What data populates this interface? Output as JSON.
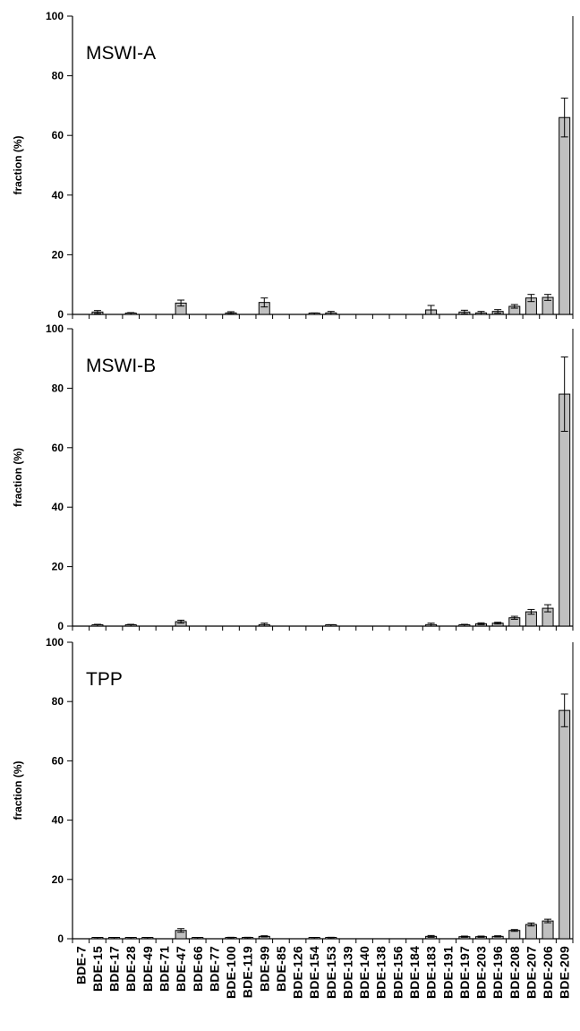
{
  "chart_data": {
    "type": "bar",
    "bar_color": "#c0c0c0",
    "categories": [
      "BDE-7",
      "BDE-15",
      "BDE-17",
      "BDE-28",
      "BDE-49",
      "BDE-71",
      "BDE-47",
      "BDE-66",
      "BDE-77",
      "BDE-100",
      "BDE-119",
      "BDE-99",
      "BDE-85",
      "BDE-126",
      "BDE-154",
      "BDE-153",
      "BDE-139",
      "BDE-140",
      "BDE-138",
      "BDE-156",
      "BDE-184",
      "BDE-183",
      "BDE-191",
      "BDE-197",
      "BDE-203",
      "BDE-196",
      "BDE-208",
      "BDE-207",
      "BDE-206",
      "BDE-209"
    ],
    "panels": [
      {
        "title": "MSWI-A",
        "ylabel": "fraction (%)",
        "ylim": [
          0,
          100
        ],
        "yticks": [
          "0",
          "20",
          "40",
          "60",
          "80",
          "100"
        ],
        "values": [
          0,
          0.8,
          0,
          0.3,
          0,
          0,
          3.8,
          0,
          0,
          0.5,
          0,
          4.0,
          0,
          0,
          0.2,
          0.5,
          0,
          0,
          0,
          0,
          0,
          1.5,
          0,
          0.8,
          0.5,
          1.0,
          2.7,
          5.5,
          5.7,
          66
        ],
        "errors": [
          0,
          0.5,
          0,
          0.3,
          0,
          0,
          1.0,
          0,
          0,
          0.4,
          0,
          1.5,
          0,
          0,
          0.3,
          0.5,
          0,
          0,
          0,
          0,
          0,
          1.5,
          0,
          0.6,
          0.5,
          0.6,
          0.6,
          1.2,
          1.0,
          6.5
        ]
      },
      {
        "title": "MSWI-B",
        "ylabel": "fraction (%)",
        "ylim": [
          0,
          100
        ],
        "yticks": [
          "0",
          "20",
          "40",
          "60",
          "80",
          "100"
        ],
        "values": [
          0,
          0.3,
          0,
          0.3,
          0,
          0,
          1.5,
          0,
          0,
          0,
          0,
          0.5,
          0,
          0,
          0,
          0.2,
          0,
          0,
          0,
          0,
          0,
          0.5,
          0,
          0.3,
          0.8,
          1.0,
          2.8,
          4.8,
          6.0,
          78
        ],
        "errors": [
          0,
          0.3,
          0,
          0.3,
          0,
          0,
          0.5,
          0,
          0,
          0,
          0,
          0.5,
          0,
          0,
          0,
          0.3,
          0,
          0,
          0,
          0,
          0,
          0.5,
          0,
          0.3,
          0.3,
          0.3,
          0.5,
          0.8,
          1.2,
          12.5
        ]
      },
      {
        "title": "TPP",
        "ylabel": "fraction (%)",
        "ylim": [
          0,
          100
        ],
        "yticks": [
          "0",
          "20",
          "40",
          "60",
          "80",
          "100"
        ],
        "values": [
          0,
          0.2,
          0.2,
          0.2,
          0.2,
          0,
          2.8,
          0.2,
          0,
          0.3,
          0.3,
          0.8,
          0,
          0,
          0.2,
          0.3,
          0,
          0,
          0,
          0,
          0,
          0.8,
          0,
          0.7,
          0.7,
          0.8,
          2.8,
          4.8,
          6.0,
          77
        ],
        "errors": [
          0,
          0.2,
          0.2,
          0.2,
          0.2,
          0,
          0.6,
          0.2,
          0,
          0.2,
          0.2,
          0.2,
          0,
          0,
          0.2,
          0.2,
          0,
          0,
          0,
          0,
          0,
          0.3,
          0,
          0.2,
          0.2,
          0.2,
          0.3,
          0.5,
          0.6,
          5.5
        ]
      }
    ]
  }
}
